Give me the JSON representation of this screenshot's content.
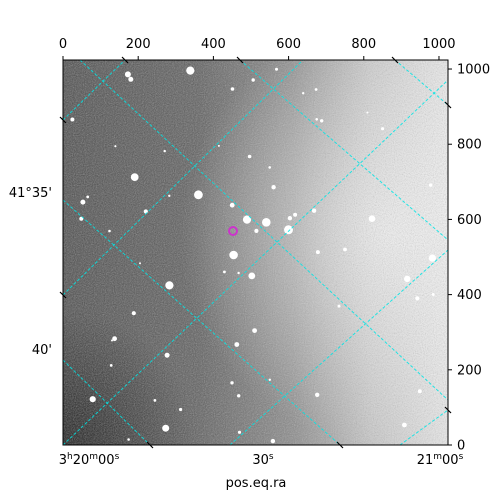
{
  "chart_data": {
    "type": "image",
    "xlabel": "pos.eq.ra",
    "ylabel": "",
    "xlim": [
      0,
      1024
    ],
    "ylim": [
      0,
      1024
    ],
    "pixel_x_ticks": [
      "0",
      "200",
      "400",
      "600",
      "800",
      "1000"
    ],
    "pixel_y_ticks": [
      "0",
      "200",
      "400",
      "600",
      "800",
      "1000"
    ],
    "ra_ticks": [
      {
        "label_main": "3",
        "sup1": "h",
        "mid": "20",
        "sup2": "m",
        "tail": "00",
        "sup3": "s"
      },
      {
        "label_main": "30",
        "sup1": "s",
        "mid": "",
        "sup2": "",
        "tail": "",
        "sup3": ""
      },
      {
        "label_main": "21",
        "sup1": "m",
        "mid": "00",
        "sup2": "s",
        "tail": "",
        "sup3": ""
      }
    ],
    "dec_ticks": [
      "41°35'",
      "40'"
    ],
    "grid_color": "#00e5e5",
    "marker_color": "#cc33cc",
    "background": "grayscale sky image"
  }
}
